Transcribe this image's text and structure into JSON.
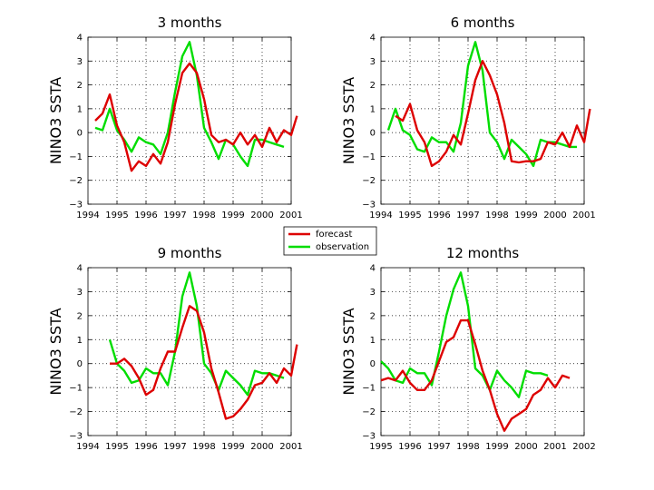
{
  "chart_data": [
    {
      "type": "line",
      "title": "3 months",
      "ylabel": "NINO3 SSTA",
      "xlabel": "",
      "xlim": [
        1994,
        2001
      ],
      "ylim": [
        -3,
        4
      ],
      "xticks": [
        1994,
        1995,
        1996,
        1997,
        1998,
        1999,
        2000,
        2001
      ],
      "yticks": [
        -3,
        -2,
        -1,
        0,
        1,
        2,
        3,
        4
      ],
      "grid": true,
      "series": [
        {
          "name": "forecast",
          "color": "#dd0000",
          "x": [
            1994.25,
            1994.5,
            1994.75,
            1995.0,
            1995.25,
            1995.5,
            1995.75,
            1996.0,
            1996.25,
            1996.5,
            1996.75,
            1997.0,
            1997.25,
            1997.5,
            1997.75,
            1998.0,
            1998.25,
            1998.5,
            1998.75,
            1999.0,
            1999.25,
            1999.5,
            1999.75,
            2000.0,
            2000.25,
            2000.5,
            2000.75,
            2001.0,
            2001.2
          ],
          "y": [
            0.5,
            0.8,
            1.6,
            0.3,
            -0.4,
            -1.6,
            -1.2,
            -1.4,
            -0.9,
            -1.3,
            -0.4,
            1.2,
            2.5,
            2.9,
            2.5,
            1.4,
            -0.1,
            -0.4,
            -0.3,
            -0.5,
            0.0,
            -0.5,
            -0.1,
            -0.6,
            0.2,
            -0.4,
            0.1,
            -0.1,
            0.7
          ]
        },
        {
          "name": "observation",
          "color": "#00dd00",
          "x": [
            1994.25,
            1994.5,
            1994.75,
            1995.0,
            1995.25,
            1995.5,
            1995.75,
            1996.0,
            1996.25,
            1996.5,
            1996.75,
            1997.0,
            1997.25,
            1997.5,
            1997.75,
            1998.0,
            1998.25,
            1998.5,
            1998.75,
            1999.0,
            1999.25,
            1999.5,
            1999.75,
            2000.0,
            2000.25,
            2000.5,
            2000.75
          ],
          "y": [
            0.2,
            0.1,
            1.0,
            0.1,
            -0.3,
            -0.8,
            -0.2,
            -0.4,
            -0.5,
            -0.9,
            0.0,
            1.7,
            3.2,
            3.8,
            2.4,
            0.2,
            -0.4,
            -1.1,
            -0.3,
            -0.5,
            -1.0,
            -1.4,
            -0.3,
            -0.3,
            -0.4,
            -0.5,
            -0.6
          ]
        }
      ]
    },
    {
      "type": "line",
      "title": "6 months",
      "ylabel": "NINO3 SSTA",
      "xlabel": "",
      "xlim": [
        1994,
        2001
      ],
      "ylim": [
        -3,
        4
      ],
      "xticks": [
        1994,
        1995,
        1996,
        1997,
        1998,
        1999,
        2000,
        2001
      ],
      "yticks": [
        -3,
        -2,
        -1,
        0,
        1,
        2,
        3,
        4
      ],
      "grid": true,
      "series": [
        {
          "name": "forecast",
          "color": "#dd0000",
          "x": [
            1994.5,
            1994.75,
            1995.0,
            1995.25,
            1995.5,
            1995.75,
            1996.0,
            1996.25,
            1996.5,
            1996.75,
            1997.0,
            1997.25,
            1997.5,
            1997.75,
            1998.0,
            1998.25,
            1998.5,
            1998.75,
            1999.0,
            1999.25,
            1999.5,
            1999.75,
            2000.0,
            2000.25,
            2000.5,
            2000.75,
            2001.0,
            2001.2
          ],
          "y": [
            0.7,
            0.5,
            1.2,
            0.1,
            -0.4,
            -1.4,
            -1.2,
            -0.8,
            -0.1,
            -0.5,
            0.8,
            2.2,
            3.0,
            2.4,
            1.6,
            0.4,
            -1.2,
            -1.25,
            -1.2,
            -1.2,
            -1.1,
            -0.4,
            -0.5,
            0.0,
            -0.6,
            0.3,
            -0.4,
            1.0
          ]
        },
        {
          "name": "observation",
          "color": "#00dd00",
          "x": [
            1994.25,
            1994.5,
            1994.75,
            1995.0,
            1995.25,
            1995.5,
            1995.75,
            1996.0,
            1996.25,
            1996.5,
            1996.75,
            1997.0,
            1997.25,
            1997.5,
            1997.75,
            1998.0,
            1998.25,
            1998.5,
            1998.75,
            1999.0,
            1999.25,
            1999.5,
            1999.75,
            2000.0,
            2000.25,
            2000.5,
            2000.75
          ],
          "y": [
            0.1,
            1.0,
            0.1,
            -0.1,
            -0.7,
            -0.8,
            -0.2,
            -0.4,
            -0.4,
            -0.8,
            0.4,
            2.8,
            3.8,
            2.6,
            0.0,
            -0.4,
            -1.1,
            -0.3,
            -0.6,
            -0.9,
            -1.4,
            -0.3,
            -0.4,
            -0.4,
            -0.5,
            -0.6,
            -0.6
          ]
        }
      ]
    },
    {
      "type": "line",
      "title": "9 months",
      "ylabel": "NINO3 SSTA",
      "xlabel": "",
      "xlim": [
        1994,
        2001
      ],
      "ylim": [
        -3,
        4
      ],
      "xticks": [
        1994,
        1995,
        1996,
        1997,
        1998,
        1999,
        2000,
        2001
      ],
      "yticks": [
        -3,
        -2,
        -1,
        0,
        1,
        2,
        3,
        4
      ],
      "grid": true,
      "series": [
        {
          "name": "forecast",
          "color": "#dd0000",
          "x": [
            1994.75,
            1995.0,
            1995.25,
            1995.5,
            1995.75,
            1996.0,
            1996.25,
            1996.5,
            1996.75,
            1997.0,
            1997.25,
            1997.5,
            1997.75,
            1998.0,
            1998.25,
            1998.5,
            1998.75,
            1999.0,
            1999.25,
            1999.5,
            1999.75,
            2000.0,
            2000.25,
            2000.5,
            2000.75,
            2001.0,
            2001.2
          ],
          "y": [
            0.0,
            0.0,
            0.2,
            -0.1,
            -0.6,
            -1.3,
            -1.1,
            -0.2,
            0.5,
            0.5,
            1.5,
            2.4,
            2.2,
            1.3,
            -0.2,
            -1.2,
            -2.3,
            -2.2,
            -1.9,
            -1.5,
            -0.9,
            -0.8,
            -0.4,
            -0.8,
            -0.2,
            -0.5,
            0.8
          ]
        },
        {
          "name": "observation",
          "color": "#00dd00",
          "x": [
            1994.75,
            1995.0,
            1995.25,
            1995.5,
            1995.75,
            1996.0,
            1996.25,
            1996.5,
            1996.75,
            1997.0,
            1997.25,
            1997.5,
            1997.75,
            1998.0,
            1998.25,
            1998.5,
            1998.75,
            1999.0,
            1999.25,
            1999.5,
            1999.75,
            2000.0,
            2000.25,
            2000.5,
            2000.75
          ],
          "y": [
            1.0,
            0.0,
            -0.3,
            -0.8,
            -0.7,
            -0.2,
            -0.4,
            -0.4,
            -0.9,
            0.5,
            2.8,
            3.8,
            2.4,
            0.0,
            -0.4,
            -1.1,
            -0.3,
            -0.6,
            -0.9,
            -1.3,
            -0.3,
            -0.4,
            -0.4,
            -0.5,
            -0.6
          ]
        }
      ]
    },
    {
      "type": "line",
      "title": "12 months",
      "ylabel": "NINO3 SSTA",
      "xlabel": "",
      "xlim": [
        1995,
        2002
      ],
      "ylim": [
        -3,
        4
      ],
      "xticks": [
        1995,
        1996,
        1997,
        1998,
        1999,
        2000,
        2001,
        2002
      ],
      "yticks": [
        -3,
        -2,
        -1,
        0,
        1,
        2,
        3,
        4
      ],
      "grid": true,
      "series": [
        {
          "name": "forecast",
          "color": "#dd0000",
          "x": [
            1995.0,
            1995.25,
            1995.5,
            1995.75,
            1996.0,
            1996.25,
            1996.5,
            1996.75,
            1997.0,
            1997.25,
            1997.5,
            1997.75,
            1998.0,
            1998.25,
            1998.5,
            1998.75,
            1999.0,
            1999.25,
            1999.5,
            1999.75,
            2000.0,
            2000.25,
            2000.5,
            2000.75,
            2001.0,
            2001.25,
            2001.5
          ],
          "y": [
            -0.7,
            -0.6,
            -0.7,
            -0.3,
            -0.8,
            -1.1,
            -1.1,
            -0.7,
            0.1,
            0.9,
            1.1,
            1.8,
            1.8,
            0.8,
            -0.3,
            -1.1,
            -2.1,
            -2.8,
            -2.3,
            -2.1,
            -1.9,
            -1.3,
            -1.1,
            -0.6,
            -1.0,
            -0.5,
            -0.6
          ]
        },
        {
          "name": "observation",
          "color": "#00dd00",
          "x": [
            1995.0,
            1995.25,
            1995.5,
            1995.75,
            1996.0,
            1996.25,
            1996.5,
            1996.75,
            1997.0,
            1997.25,
            1997.5,
            1997.75,
            1998.0,
            1998.25,
            1998.5,
            1998.75,
            1999.0,
            1999.25,
            1999.5,
            1999.75,
            2000.0,
            2000.25,
            2000.5,
            2000.75
          ],
          "y": [
            0.1,
            -0.2,
            -0.7,
            -0.8,
            -0.2,
            -0.4,
            -0.4,
            -0.9,
            0.5,
            2.0,
            3.1,
            3.8,
            2.4,
            -0.2,
            -0.5,
            -1.1,
            -0.3,
            -0.7,
            -1.0,
            -1.4,
            -0.3,
            -0.4,
            -0.4,
            -0.5
          ]
        }
      ]
    }
  ],
  "legend": {
    "placement": "center",
    "items": [
      {
        "label": "forecast",
        "color": "#dd0000"
      },
      {
        "label": "observation",
        "color": "#00dd00"
      }
    ]
  }
}
